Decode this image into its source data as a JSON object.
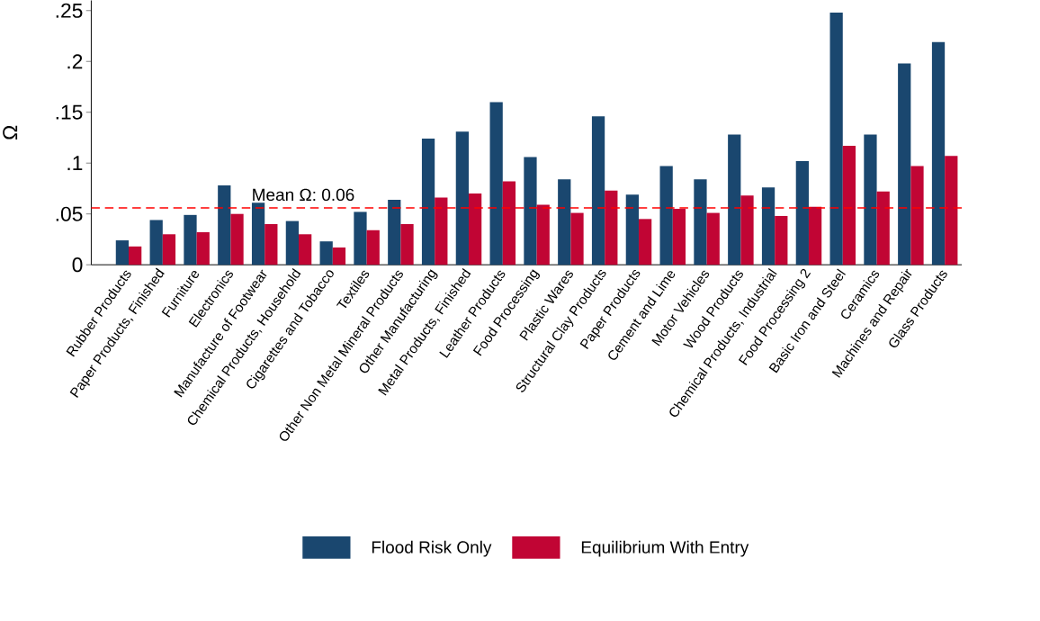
{
  "chart_data": {
    "type": "bar",
    "ylabel": "Ω",
    "categories": [
      "Rubber Products",
      "Paper Products, Finished",
      "Furniture",
      "Electronics",
      "Manufacture of Footwear",
      "Chemical Products, Household",
      "Cigarettes and Tobacco",
      "Textiles",
      "Other Non Metal Mineral Products",
      "Other Manufacturing",
      "Metal Products, Finished",
      "Leather Products",
      "Food Processing",
      "Plastic Wares",
      "Structural Clay Products",
      "Paper Products",
      "Cement and Lime",
      "Motor Vehicles",
      "Wood Products",
      "Chemical Products, Industrial",
      "Food Processing 2",
      "Basic Iron and Steel",
      "Ceramics",
      "Machines and Repair",
      "Glass Products"
    ],
    "series": [
      {
        "name": "Flood Risk Only",
        "color": "#1a476f",
        "values": [
          0.024,
          0.044,
          0.049,
          0.078,
          0.061,
          0.043,
          0.023,
          0.052,
          0.064,
          0.124,
          0.131,
          0.16,
          0.106,
          0.084,
          0.146,
          0.069,
          0.097,
          0.084,
          0.128,
          0.076,
          0.102,
          0.248,
          0.128,
          0.198,
          0.219
        ]
      },
      {
        "name": "Equilibrium With Entry",
        "color": "#c10534",
        "values": [
          0.018,
          0.03,
          0.032,
          0.05,
          0.04,
          0.03,
          0.017,
          0.034,
          0.04,
          0.066,
          0.07,
          0.082,
          0.059,
          0.051,
          0.073,
          0.045,
          0.055,
          0.051,
          0.068,
          0.048,
          0.057,
          0.117,
          0.072,
          0.097,
          0.107
        ]
      }
    ],
    "ylim": [
      0,
      0.26
    ],
    "yticks": [
      0,
      {
        "value": 0.05,
        "label": ".05"
      },
      {
        "value": 0.1,
        "label": ".1"
      },
      {
        "value": 0.15,
        "label": ".15"
      },
      {
        "value": 0.2,
        "label": ".2"
      },
      {
        "value": 0.25,
        "label": ".25"
      }
    ],
    "ref_lines": [
      {
        "axis": "y",
        "value": 0.056,
        "label": "Mean Ω: 0.06",
        "color": "#ff0000",
        "line_style": "dashed"
      }
    ],
    "grid": false,
    "legend": "bottom"
  }
}
